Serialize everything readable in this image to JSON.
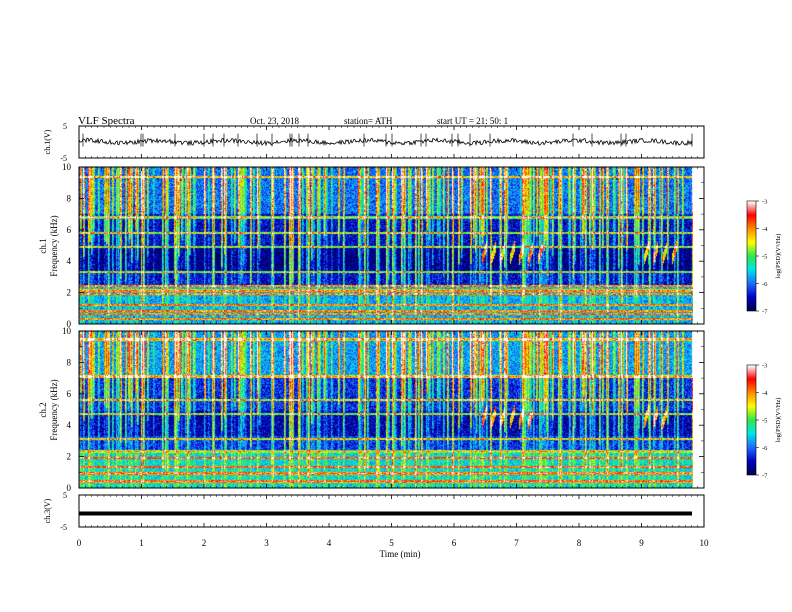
{
  "header": {
    "title": "VLF  Spectra",
    "date": "Oct. 23, 2018",
    "station": "station= ATH",
    "start": "start  UT  =    21: 50: 1"
  },
  "chart_data": [
    {
      "type": "line",
      "panel": "ch1-waveform",
      "ylabel": "ch.1(V)",
      "yticks": [
        "5",
        "-5"
      ],
      "ylim": [
        -5,
        5
      ],
      "xlim": [
        0,
        10
      ],
      "level": 0.1,
      "series_color": "#000000"
    },
    {
      "type": "heatmap",
      "panel": "ch1-spectrogram",
      "ylabel": "ch.1\nFrequency  (kHz)",
      "ylabel_lines": [
        "ch.1",
        "Frequency  (kHz)"
      ],
      "yticks": [
        "0",
        "2",
        "4",
        "6",
        "8",
        "10"
      ],
      "ylim": [
        0,
        10
      ],
      "xlim": [
        0,
        9.85
      ],
      "colorbar": {
        "label": "log(PSD)(V²/Hz)",
        "ticks": [
          "-3",
          "-4",
          "-5",
          "-6",
          "-7"
        ],
        "range": [
          -7,
          -3
        ]
      },
      "value_range": [
        -7,
        -3
      ],
      "features": {
        "background_level": -6.5,
        "lf_band_kHz": [
          0,
          2.5
        ],
        "lf_band_level": -5.8,
        "strong_lines_kHz": [
          0.3,
          0.6,
          0.8,
          1.2,
          1.9,
          2.1,
          2.4,
          3.3,
          4.9,
          5.8,
          6.8,
          9.4
        ],
        "tweeks_time_min": [
          6.45,
          6.6,
          6.75,
          6.9,
          7.05,
          7.2,
          7.35,
          9.05,
          9.2,
          9.35,
          9.5
        ],
        "tweek_freq_kHz": 4.0
      }
    },
    {
      "type": "heatmap",
      "panel": "ch2-spectrogram",
      "ylabel": "ch.2\nFrequency  (kHz)",
      "ylabel_lines": [
        "ch.2",
        "Frequency  (kHz)"
      ],
      "yticks": [
        "0",
        "2",
        "4",
        "6",
        "8",
        "10"
      ],
      "ylim": [
        0,
        10
      ],
      "xlim": [
        0,
        9.85
      ],
      "colorbar": {
        "label": "log(PSD)(V²/Hz)",
        "ticks": [
          "-3",
          "-4",
          "-5",
          "-6",
          "-7"
        ],
        "range": [
          -7,
          -3
        ]
      },
      "value_range": [
        -7,
        -3
      ],
      "features": {
        "background_level": -6.3,
        "lf_band_kHz": [
          0,
          2.2
        ],
        "lf_band_level": -5.5,
        "strong_lines_kHz": [
          0.4,
          0.9,
          1.3,
          1.9,
          2.3,
          3.1,
          4.7,
          5.6,
          7.1,
          9.5
        ],
        "tweeks_time_min": [
          6.45,
          6.6,
          6.75,
          6.9,
          7.05,
          7.2,
          9.05,
          9.2,
          9.35
        ],
        "tweek_freq_kHz": 4.0
      }
    },
    {
      "type": "line",
      "panel": "ch3-waveform",
      "ylabel": "ch.3(V)",
      "yticks": [
        "5",
        "-5"
      ],
      "ylim": [
        -5,
        5
      ],
      "xlim": [
        0,
        10
      ],
      "level": -0.8,
      "series_color": "#000000"
    }
  ],
  "xaxis": {
    "label": "Time  (min)",
    "ticks": [
      "0",
      "1",
      "2",
      "3",
      "4",
      "5",
      "6",
      "7",
      "8",
      "9",
      "10"
    ],
    "range": [
      0,
      10
    ]
  },
  "colors": {
    "colormap": [
      "#000050",
      "#0000c8",
      "#1e6eff",
      "#00e6e6",
      "#32e650",
      "#ffff00",
      "#ff8c00",
      "#ff0000",
      "#ffffff"
    ]
  }
}
